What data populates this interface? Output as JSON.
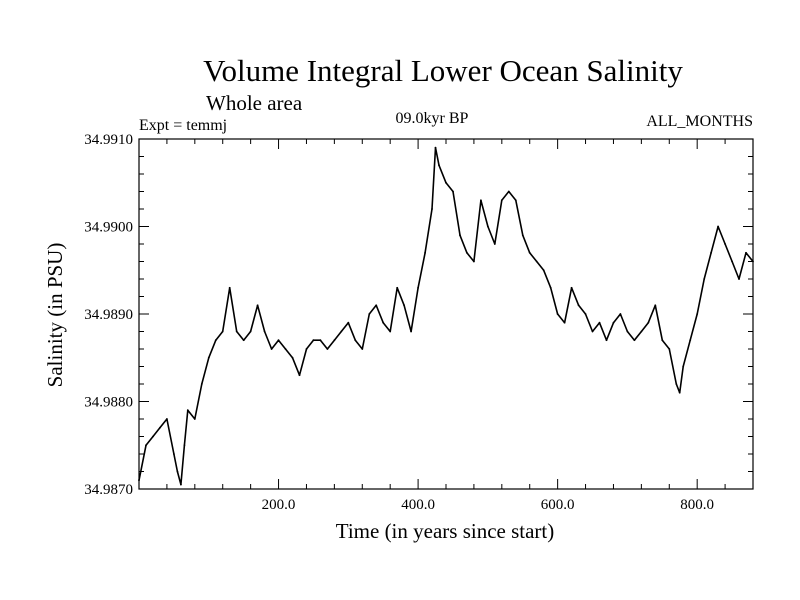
{
  "chart_data": {
    "type": "line",
    "title": "Volume Integral Lower Ocean Salinity",
    "subtitle": "Whole area",
    "left_annotation": "Expt = temmj",
    "center_annotation": "09.0kyr BP",
    "right_annotation": "ALL_MONTHS",
    "xlabel": "Time (in years since start)",
    "ylabel": "Salinity (in PSU)",
    "xlim": [
      0,
      880
    ],
    "ylim": [
      34.987,
      34.991
    ],
    "xticks_major": [
      200,
      400,
      600,
      800
    ],
    "xtick_labels": [
      "200.0",
      "400.0",
      "600.0",
      "800.0"
    ],
    "yticks_major": [
      34.987,
      34.988,
      34.989,
      34.99,
      34.991
    ],
    "ytick_labels": [
      "34.9870",
      "34.9880",
      "34.9890",
      "34.9900",
      "34.9910"
    ],
    "minor_x_step": 40,
    "minor_y_step": 0.0002,
    "series": [
      {
        "name": "Salinity",
        "color": "#000000",
        "x": [
          0,
          10,
          20,
          30,
          40,
          50,
          55,
          60,
          65,
          70,
          80,
          90,
          100,
          110,
          120,
          130,
          140,
          150,
          160,
          170,
          180,
          190,
          200,
          210,
          220,
          230,
          240,
          250,
          260,
          270,
          280,
          290,
          300,
          310,
          320,
          330,
          340,
          350,
          360,
          370,
          380,
          390,
          400,
          410,
          420,
          425,
          430,
          440,
          450,
          460,
          470,
          480,
          490,
          500,
          510,
          520,
          530,
          540,
          550,
          560,
          570,
          580,
          590,
          600,
          610,
          620,
          630,
          640,
          650,
          660,
          670,
          680,
          690,
          700,
          710,
          720,
          730,
          740,
          750,
          760,
          770,
          775,
          780,
          790,
          800,
          810,
          820,
          830,
          840,
          850,
          860,
          870,
          880
        ],
        "values": [
          34.9871,
          34.9875,
          34.9876,
          34.9877,
          34.9878,
          34.9874,
          34.9872,
          34.98705,
          34.9875,
          34.9879,
          34.9878,
          34.9882,
          34.9885,
          34.9887,
          34.9888,
          34.9893,
          34.9888,
          34.9887,
          34.9888,
          34.9891,
          34.9888,
          34.9886,
          34.9887,
          34.9886,
          34.9885,
          34.9883,
          34.9886,
          34.9887,
          34.9887,
          34.9886,
          34.9887,
          34.9888,
          34.9889,
          34.9887,
          34.9886,
          34.989,
          34.9891,
          34.9889,
          34.9888,
          34.9893,
          34.9891,
          34.9888,
          34.9893,
          34.9897,
          34.9902,
          34.9909,
          34.9907,
          34.9905,
          34.9904,
          34.9899,
          34.9897,
          34.9896,
          34.9903,
          34.99,
          34.9898,
          34.9903,
          34.9904,
          34.9903,
          34.9899,
          34.9897,
          34.9896,
          34.9895,
          34.9893,
          34.989,
          34.9889,
          34.9893,
          34.9891,
          34.989,
          34.9888,
          34.9889,
          34.9887,
          34.9889,
          34.989,
          34.9888,
          34.9887,
          34.9888,
          34.9889,
          34.9891,
          34.9887,
          34.9886,
          34.9882,
          34.9881,
          34.9884,
          34.9887,
          34.989,
          34.9894,
          34.9897,
          34.99,
          34.9898,
          34.9896,
          34.9894,
          34.9897,
          34.9896
        ]
      }
    ]
  }
}
